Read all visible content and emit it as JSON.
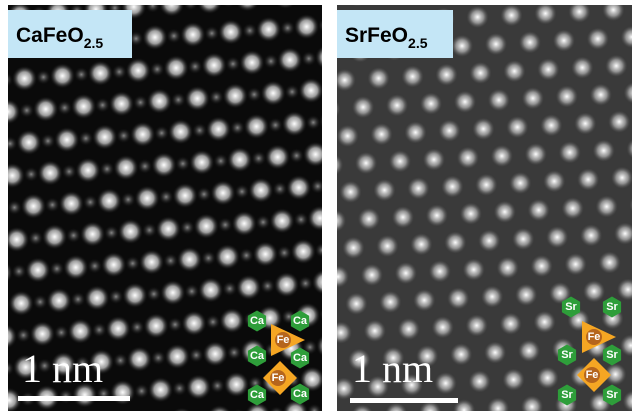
{
  "panels": [
    {
      "label": {
        "formula": "CaFeO",
        "subscript": "2.5"
      },
      "scale_bar": "1 nm",
      "atoms": [
        "Ca",
        "Ca",
        "Fe",
        "Ca",
        "Ca",
        "Fe",
        "Ca",
        "Ca"
      ]
    },
    {
      "label": {
        "formula": "SrFeO",
        "subscript": "2.5"
      },
      "scale_bar": "1 nm",
      "atoms": [
        "Sr",
        "Sr",
        "Fe",
        "Sr",
        "Sr",
        "Fe",
        "Sr",
        "Sr"
      ]
    }
  ]
}
